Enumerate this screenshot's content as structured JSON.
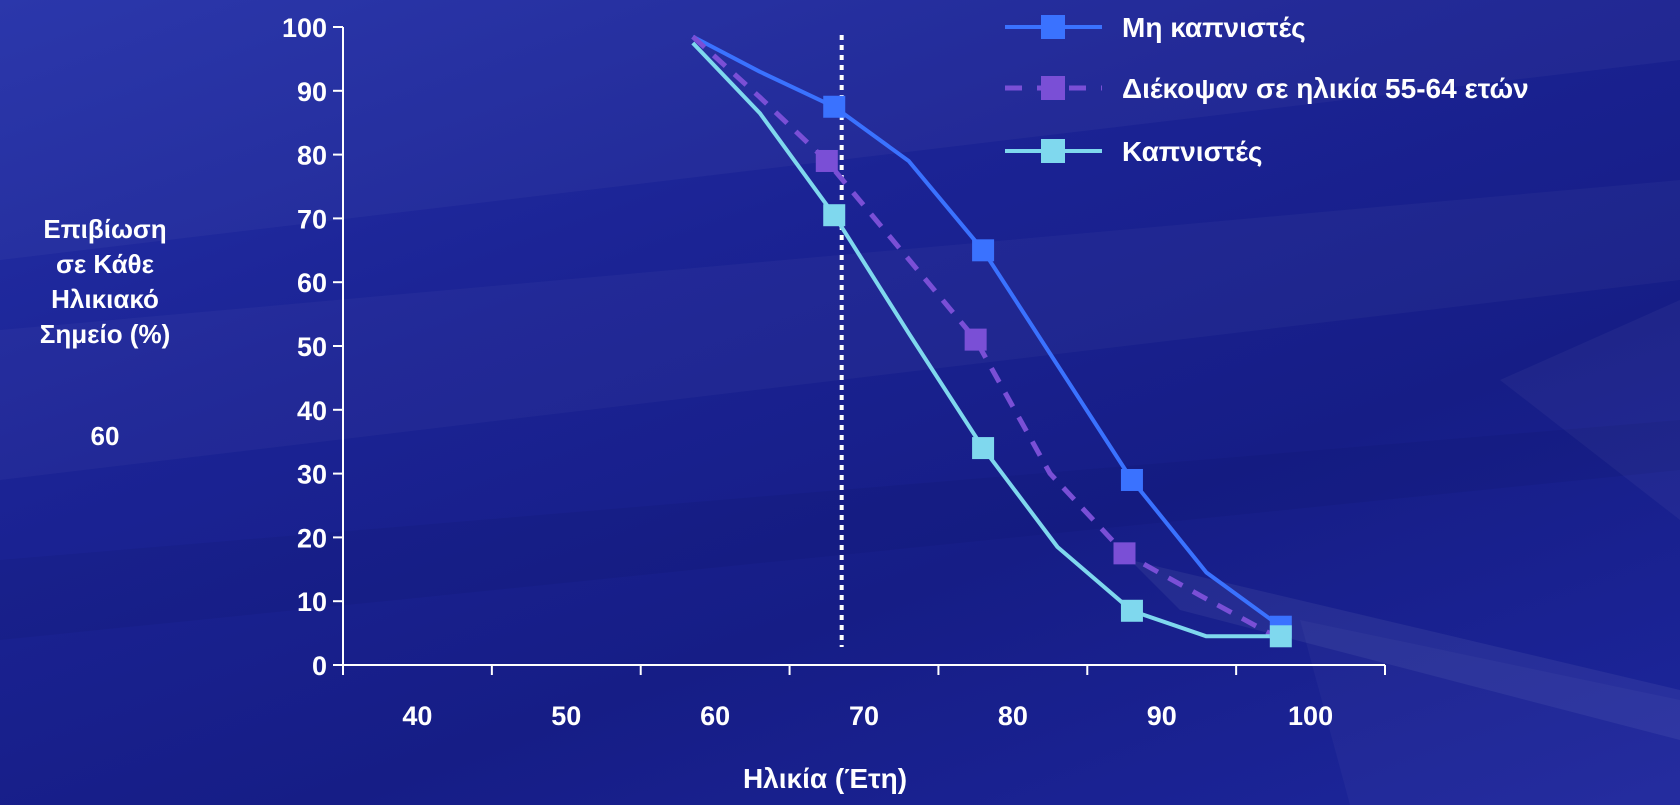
{
  "chart_data": {
    "type": "line",
    "y_axis_label_lines": [
      "Επιβίωση",
      "σε Κάθε",
      "Ηλικιακό",
      "Σημείο (%)"
    ],
    "y_axis_label_extra": "60",
    "xlabel": "Ηλικία (Έτη)",
    "xlim": [
      35,
      105
    ],
    "ylim": [
      0,
      100
    ],
    "x_ticks": [
      40,
      50,
      60,
      70,
      80,
      90,
      100
    ],
    "y_ticks": [
      0,
      10,
      20,
      30,
      40,
      50,
      60,
      70,
      80,
      90,
      100
    ],
    "grid": false,
    "legend_position": "top-right",
    "reference_line_x": 68.5,
    "series": [
      {
        "name": "Μη καπνιστές",
        "color": "#3a72ff",
        "dash": "solid",
        "x": [
          58.5,
          63,
          68,
          73,
          78,
          83,
          88,
          93,
          98
        ],
        "y": [
          98.5,
          93,
          87.5,
          79,
          65,
          47,
          29,
          14.5,
          6
        ],
        "marker_x": [
          68,
          78,
          88,
          98
        ],
        "marker_y": [
          87.5,
          65,
          29,
          6
        ]
      },
      {
        "name": "Διέκοψαν σε ηλικία 55-64 ετών",
        "color": "#7a4fd6",
        "dash": "dashed",
        "x": [
          58.5,
          63,
          67.5,
          72.5,
          77.5,
          82.5,
          87.5,
          92.5,
          98
        ],
        "y": [
          98.5,
          89,
          79,
          65,
          51,
          30,
          17.5,
          11,
          4
        ],
        "marker_x": [
          67.5,
          77.5,
          87.5
        ],
        "marker_y": [
          79,
          51,
          17.5
        ]
      },
      {
        "name": "Καπνιστές",
        "color": "#7fd8ee",
        "dash": "solid",
        "x": [
          58.5,
          63,
          68,
          73,
          78,
          83,
          88,
          93,
          98
        ],
        "y": [
          97.5,
          86.5,
          70.5,
          52,
          34,
          18.5,
          8.5,
          4.5,
          4.5
        ],
        "marker_x": [
          68,
          78,
          88,
          98
        ],
        "marker_y": [
          70.5,
          34,
          8.5,
          4.5
        ]
      }
    ]
  }
}
